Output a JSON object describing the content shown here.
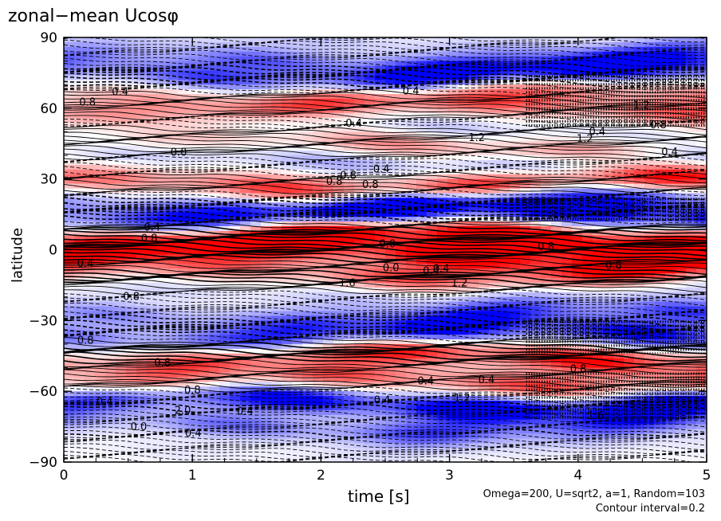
{
  "chart_data": {
    "type": "heatmap",
    "title": "zonal−mean Ucosφ",
    "xlabel": "time [s]",
    "ylabel": "latitude",
    "xlim": [
      0,
      5
    ],
    "ylim": [
      -90,
      90
    ],
    "x_ticks": [
      "0",
      "1",
      "2",
      "3",
      "4",
      "5"
    ],
    "y_ticks": [
      "90",
      "60",
      "30",
      "0",
      "−30",
      "−60",
      "−90"
    ],
    "colors": {
      "positive": "#ff0000",
      "negative": "#0000ff",
      "zero": "#ffffff",
      "contour": "#000000"
    },
    "contour_labels": [
      "0.4",
      "1.2",
      "0.8",
      "1.6",
      "0.4",
      "0.0",
      "0.4",
      "0.0",
      "0.8",
      "0.4",
      "0.8",
      "0.4",
      "0.0",
      "0.8",
      "0.4",
      "0.8",
      "0.4",
      "0.8",
      "2.0",
      "0.8",
      "0.4",
      "1.6",
      "0.8",
      "0.4",
      "0.0",
      "0.8",
      "0.4",
      "0.8",
      "0.4",
      "1.2",
      "0.4",
      "0.8",
      "1.2",
      "0.8",
      "1.2",
      "0.4",
      "0.4",
      "0.4",
      "1.2",
      "0.8",
      "0.4"
    ],
    "bands": [
      {
        "lat": 88,
        "amp": -0.4
      },
      {
        "lat": 80,
        "amp": -1.2
      },
      {
        "lat": 74,
        "amp": -1.6
      },
      {
        "lat": 66,
        "amp": 0.8
      },
      {
        "lat": 60,
        "amp": 1.0
      },
      {
        "lat": 50,
        "amp": -0.4
      },
      {
        "lat": 45,
        "amp": 0.8
      },
      {
        "lat": 38,
        "amp": -0.6
      },
      {
        "lat": 28,
        "amp": 1.6
      },
      {
        "lat": 20,
        "amp": -1.2
      },
      {
        "lat": 15,
        "amp": -2.0
      },
      {
        "lat": 5,
        "amp": 2.4
      },
      {
        "lat": -2,
        "amp": 2.0
      },
      {
        "lat": -10,
        "amp": 1.2
      },
      {
        "lat": -18,
        "amp": -0.4
      },
      {
        "lat": -28,
        "amp": -1.2
      },
      {
        "lat": -36,
        "amp": -1.6
      },
      {
        "lat": -46,
        "amp": 1.6
      },
      {
        "lat": -56,
        "amp": 1.2
      },
      {
        "lat": -65,
        "amp": -2.2
      },
      {
        "lat": -75,
        "amp": -1.2
      },
      {
        "lat": -85,
        "amp": -0.2
      }
    ],
    "notes": [
      "Omega=200, U=sqrt2, a=1, Random=103",
      "Contour interval=0.2"
    ]
  }
}
